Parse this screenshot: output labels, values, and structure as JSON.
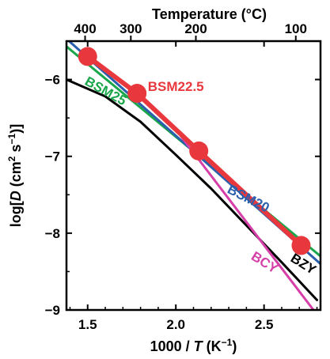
{
  "chart_data": {
    "type": "line",
    "title": "",
    "top_axis": {
      "label": "Temperature (°C)",
      "ticks": [
        {
          "label": "400",
          "value": 400
        },
        {
          "label": "300",
          "value": 300
        },
        {
          "label": "200",
          "value": 200
        },
        {
          "label": "100",
          "value": 100
        }
      ]
    },
    "x_axis": {
      "label_parts": [
        "1000 / ",
        "T",
        " (K",
        "−1",
        ")"
      ],
      "range": [
        1.38,
        2.82
      ],
      "ticks": [
        {
          "label": "1.5",
          "value": 1.5
        },
        {
          "label": "2.0",
          "value": 2.0
        },
        {
          "label": "2.5",
          "value": 2.5
        }
      ]
    },
    "y_axis": {
      "label_parts": [
        "log[",
        "D",
        " (cm",
        "2",
        " s",
        "−1",
        ")]"
      ],
      "range": [
        -9,
        -5.5
      ],
      "ticks": [
        {
          "label": "−6",
          "value": -6
        },
        {
          "label": "−7",
          "value": -7
        },
        {
          "label": "−8",
          "value": -8
        },
        {
          "label": "−9",
          "value": -9
        }
      ]
    },
    "series": [
      {
        "name": "BZY",
        "color": "#000000",
        "width": 3,
        "x": [
          1.38,
          1.6,
          1.8,
          2.0,
          2.2,
          2.4,
          2.6,
          2.8
        ],
        "y": [
          -6.0,
          -6.22,
          -6.55,
          -6.98,
          -7.42,
          -7.9,
          -8.38,
          -8.87
        ]
      },
      {
        "name": "BSM25",
        "color": "#1aa64a",
        "width": 3,
        "x": [
          1.38,
          2.82
        ],
        "y": [
          -5.57,
          -8.3
        ]
      },
      {
        "name": "BSM20",
        "color": "#2b5fad",
        "width": 3,
        "x": [
          1.38,
          2.82
        ],
        "y": [
          -5.47,
          -8.4
        ]
      },
      {
        "name": "BCY",
        "color": "#d63fa8",
        "width": 3,
        "x": [
          1.99,
          2.78
        ],
        "y": [
          -6.62,
          -9.0
        ]
      },
      {
        "name": "BSM22.5",
        "color": "#e8383d",
        "width": 6,
        "x": [
          1.5,
          1.78,
          2.13,
          2.71
        ],
        "y": [
          -5.7,
          -6.18,
          -6.93,
          -8.16
        ],
        "markers": true
      }
    ],
    "series_labels": [
      {
        "text": "BSM25",
        "color": "#1aa64a",
        "x": 1.59,
        "y": -6.2,
        "angle": 29
      },
      {
        "text": "BSM22.5",
        "color": "#e8383d",
        "x": 2.0,
        "y": -6.15,
        "angle": 0
      },
      {
        "text": "BSM20",
        "color": "#2b5fad",
        "x": 2.4,
        "y": -7.6,
        "angle": 27
      },
      {
        "text": "BCY",
        "color": "#d63fa8",
        "x": 2.49,
        "y": -8.43,
        "angle": 32
      },
      {
        "text": "BZY",
        "color": "#000000",
        "x": 2.71,
        "y": -8.45,
        "angle": 32
      }
    ]
  }
}
